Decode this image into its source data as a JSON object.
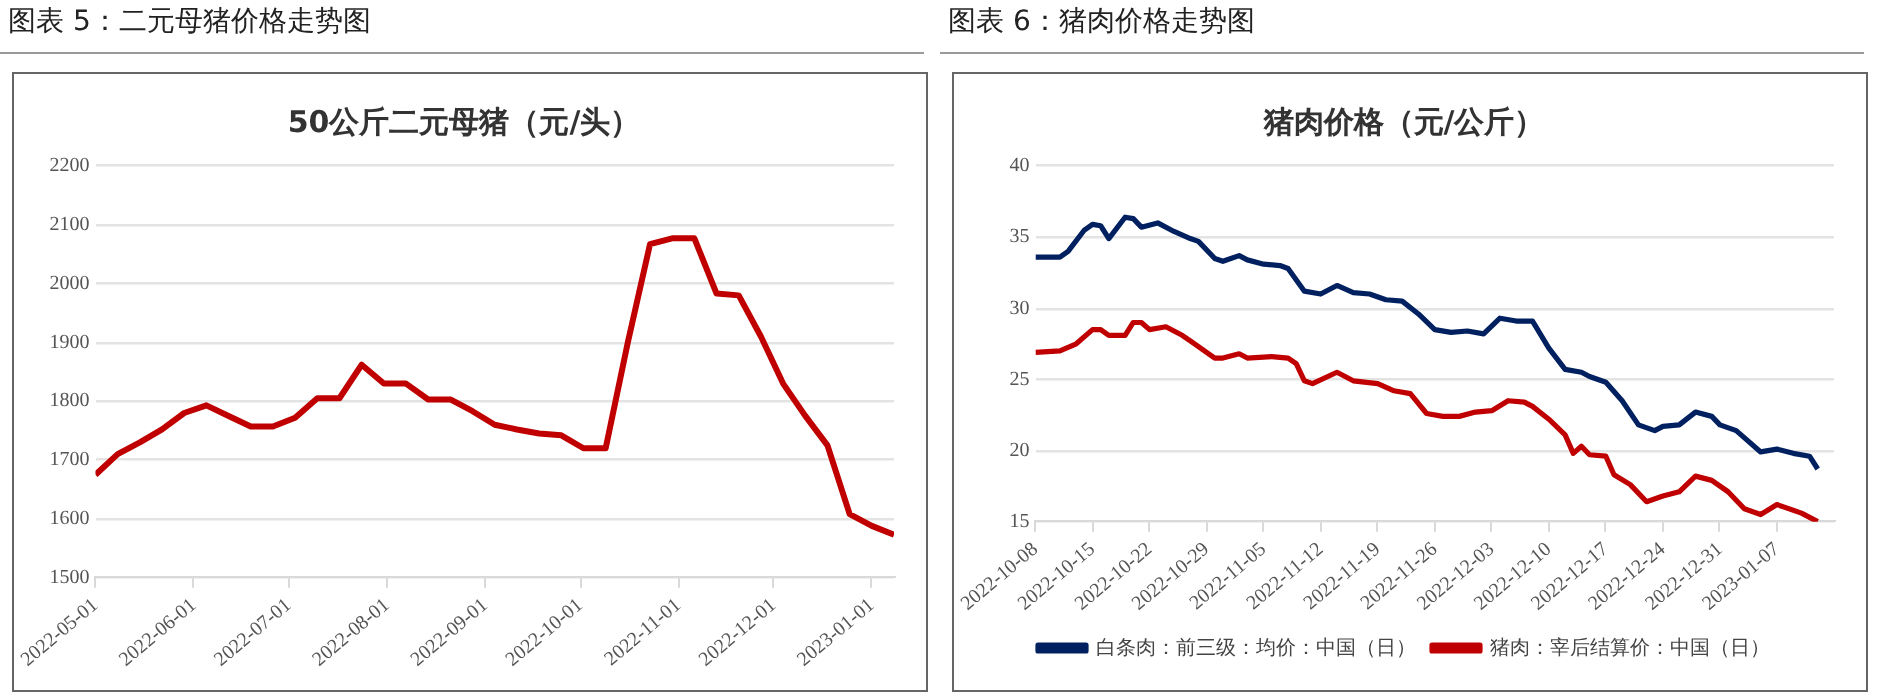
{
  "chart_data": [
    {
      "type": "line",
      "title": "50公斤二元母猪（元/头）",
      "annotations": [
        "图表 5：二元母猪价格走势图"
      ],
      "x": [
        "2022-05-01",
        "2022-05-08",
        "2022-05-15",
        "2022-05-22",
        "2022-05-29",
        "2022-06-05",
        "2022-06-12",
        "2022-06-19",
        "2022-06-26",
        "2022-07-03",
        "2022-07-10",
        "2022-07-17",
        "2022-07-24",
        "2022-07-31",
        "2022-08-07",
        "2022-08-14",
        "2022-08-21",
        "2022-08-28",
        "2022-09-04",
        "2022-09-11",
        "2022-09-18",
        "2022-09-25",
        "2022-10-02",
        "2022-10-09",
        "2022-10-16",
        "2022-10-23",
        "2022-10-30",
        "2022-11-06",
        "2022-11-13",
        "2022-11-20",
        "2022-11-27",
        "2022-12-04",
        "2022-12-11",
        "2022-12-18",
        "2022-12-25",
        "2023-01-01",
        "2023-01-08"
      ],
      "values": [
        1675,
        1710,
        1730,
        1752,
        1780,
        1793,
        1775,
        1757,
        1757,
        1772,
        1805,
        1805,
        1862,
        1830,
        1830,
        1803,
        1803,
        1783,
        1760,
        1752,
        1745,
        1742,
        1720,
        1720,
        1900,
        2067,
        2077,
        2077,
        1983,
        1980,
        1910,
        1830,
        1775,
        1725,
        1608,
        1588,
        1573
      ],
      "color": "#c00000",
      "xlim": [
        "2022-05-01",
        "2023-01-08"
      ],
      "xticks": [
        "2022-05-01",
        "2022-06-01",
        "2022-07-01",
        "2022-08-01",
        "2022-09-01",
        "2022-10-01",
        "2022-11-01",
        "2022-12-01",
        "2023-01-01"
      ],
      "ylim": [
        1500,
        2200
      ],
      "yticks": [
        1500,
        1600,
        1700,
        1800,
        1900,
        2000,
        2100,
        2200
      ],
      "grid": "y",
      "legend": false
    },
    {
      "type": "line",
      "title": "猪肉价格（元/公斤）",
      "annotations": [
        "图表 6：猪肉价格走势图"
      ],
      "series": [
        {
          "name": "白条肉：前三级：均价：中国（日）",
          "color": "#002060",
          "x": [
            "2022-10-08",
            "2022-10-11",
            "2022-10-12",
            "2022-10-14",
            "2022-10-15",
            "2022-10-16",
            "2022-10-17",
            "2022-10-19",
            "2022-10-20",
            "2022-10-21",
            "2022-10-23",
            "2022-10-25",
            "2022-10-27",
            "2022-10-28",
            "2022-10-30",
            "2022-10-31",
            "2022-11-02",
            "2022-11-03",
            "2022-11-05",
            "2022-11-07",
            "2022-11-08",
            "2022-11-10",
            "2022-11-12",
            "2022-11-14",
            "2022-11-16",
            "2022-11-18",
            "2022-11-20",
            "2022-11-22",
            "2022-11-24",
            "2022-11-26",
            "2022-11-28",
            "2022-11-30",
            "2022-12-02",
            "2022-12-04",
            "2022-12-06",
            "2022-12-08",
            "2022-12-10",
            "2022-12-12",
            "2022-12-14",
            "2022-12-15",
            "2022-12-17",
            "2022-12-19",
            "2022-12-21",
            "2022-12-23",
            "2022-12-24",
            "2022-12-26",
            "2022-12-28",
            "2022-12-30",
            "2022-12-31",
            "2023-01-02",
            "2023-01-05",
            "2023-01-07",
            "2023-01-09",
            "2023-01-11",
            "2023-01-12"
          ],
          "values": [
            33.6,
            33.6,
            34.0,
            35.5,
            35.9,
            35.8,
            34.9,
            36.4,
            36.3,
            35.7,
            36.0,
            35.4,
            34.9,
            34.7,
            33.5,
            33.3,
            33.7,
            33.4,
            33.1,
            33.0,
            32.8,
            31.2,
            31.0,
            31.6,
            31.1,
            31.0,
            30.6,
            30.5,
            29.6,
            28.5,
            28.3,
            28.4,
            28.2,
            29.3,
            29.1,
            29.1,
            27.2,
            25.7,
            25.5,
            25.2,
            24.8,
            23.5,
            21.8,
            21.4,
            21.7,
            21.8,
            22.7,
            22.4,
            21.8,
            21.4,
            19.9,
            20.1,
            19.8,
            19.6,
            18.7
          ]
        },
        {
          "name": "猪肉：宰后结算价：中国（日）",
          "color": "#c00000",
          "x": [
            "2022-10-08",
            "2022-10-11",
            "2022-10-13",
            "2022-10-15",
            "2022-10-16",
            "2022-10-17",
            "2022-10-19",
            "2022-10-20",
            "2022-10-21",
            "2022-10-22",
            "2022-10-24",
            "2022-10-26",
            "2022-10-27",
            "2022-10-28",
            "2022-10-30",
            "2022-10-31",
            "2022-11-02",
            "2022-11-03",
            "2022-11-06",
            "2022-11-08",
            "2022-11-09",
            "2022-11-10",
            "2022-11-11",
            "2022-11-14",
            "2022-11-16",
            "2022-11-19",
            "2022-11-21",
            "2022-11-23",
            "2022-11-25",
            "2022-11-27",
            "2022-11-29",
            "2022-12-01",
            "2022-12-03",
            "2022-12-05",
            "2022-12-07",
            "2022-12-08",
            "2022-12-10",
            "2022-12-12",
            "2022-12-13",
            "2022-12-14",
            "2022-12-15",
            "2022-12-17",
            "2022-12-18",
            "2022-12-20",
            "2022-12-22",
            "2022-12-24",
            "2022-12-26",
            "2022-12-28",
            "2022-12-30",
            "2023-01-01",
            "2023-01-03",
            "2023-01-05",
            "2023-01-07",
            "2023-01-10",
            "2023-01-12"
          ],
          "values": [
            26.9,
            27.0,
            27.5,
            28.5,
            28.5,
            28.1,
            28.1,
            29.0,
            29.0,
            28.5,
            28.7,
            28.1,
            27.7,
            27.3,
            26.5,
            26.5,
            26.8,
            26.5,
            26.6,
            26.5,
            26.1,
            24.9,
            24.7,
            25.5,
            24.9,
            24.7,
            24.2,
            24.0,
            22.6,
            22.4,
            22.4,
            22.7,
            22.8,
            23.5,
            23.4,
            23.1,
            22.2,
            21.1,
            19.8,
            20.3,
            19.7,
            19.6,
            18.3,
            17.6,
            16.4,
            16.8,
            17.1,
            18.2,
            17.9,
            17.1,
            15.9,
            15.5,
            16.2,
            15.6,
            15.0
          ]
        }
      ],
      "xlim": [
        "2022-10-08",
        "2023-01-14"
      ],
      "xticks": [
        "2022-10-08",
        "2022-10-15",
        "2022-10-22",
        "2022-10-29",
        "2022-11-05",
        "2022-11-12",
        "2022-11-19",
        "2022-11-26",
        "2022-12-03",
        "2022-12-10",
        "2022-12-17",
        "2022-12-24",
        "2022-12-31",
        "2023-01-07"
      ],
      "ylim": [
        15,
        40
      ],
      "yticks": [
        15,
        20,
        25,
        30,
        35,
        40
      ],
      "grid": "y",
      "legend": "bottom"
    }
  ]
}
